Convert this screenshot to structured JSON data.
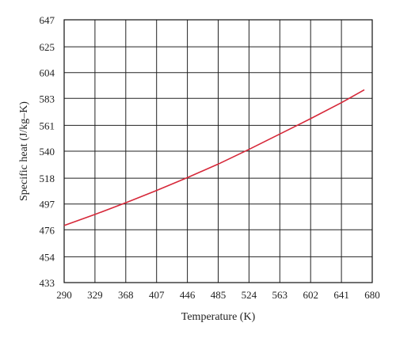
{
  "chart_data": {
    "type": "line",
    "xlabel": "Temperature (K)",
    "ylabel": "Specific heat (J/kg–K)",
    "xlim": [
      290,
      680
    ],
    "ylim": [
      433,
      647
    ],
    "x_ticks": [
      290,
      329,
      368,
      407,
      446,
      485,
      524,
      563,
      602,
      641,
      680
    ],
    "y_ticks": [
      433,
      454,
      476,
      497,
      518,
      540,
      561,
      583,
      604,
      625,
      647
    ],
    "grid": true,
    "series": [
      {
        "color": "#d62839",
        "x": [
          290,
          329,
          368,
          407,
          446,
          485,
          524,
          563,
          602,
          641,
          670
        ],
        "y": [
          479.5,
          488.5,
          498.0,
          508.0,
          518.5,
          529.5,
          541.5,
          554.0,
          566.5,
          579.5,
          590.0
        ]
      }
    ]
  }
}
